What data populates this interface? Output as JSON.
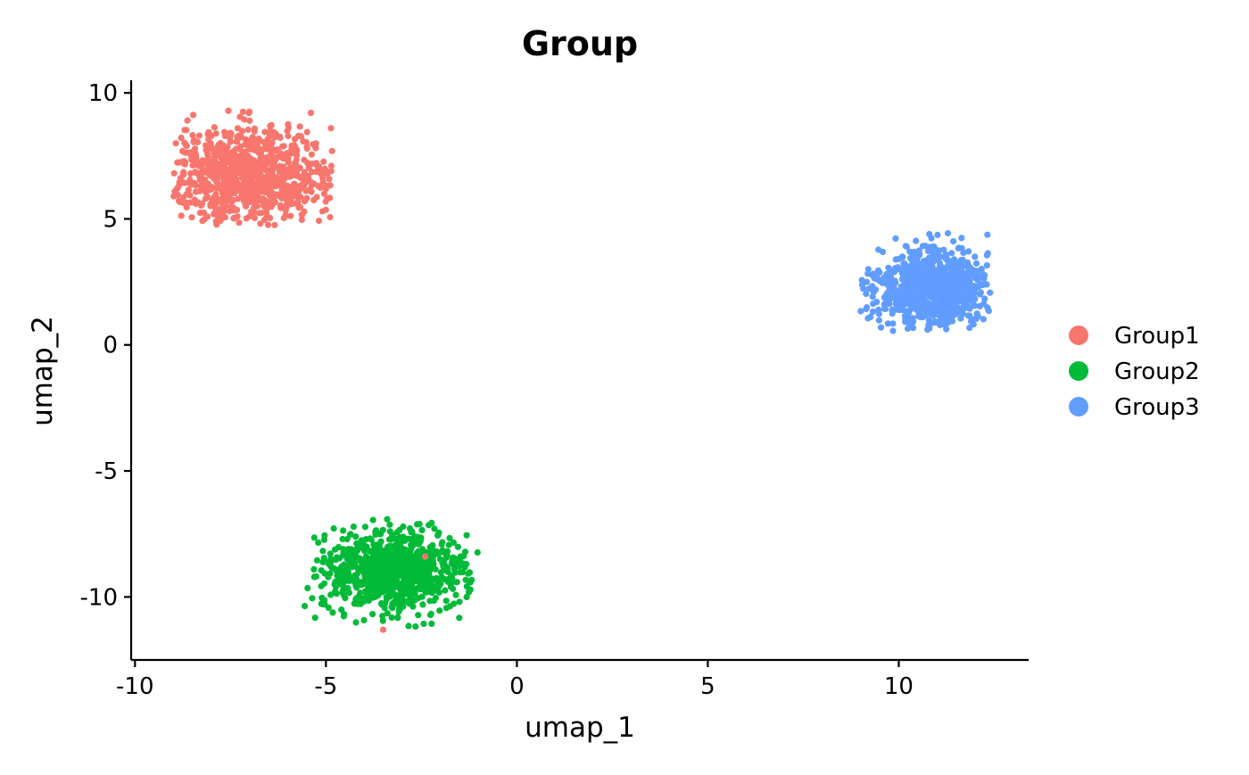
{
  "chart_data": {
    "type": "scatter",
    "title": "Group",
    "xlabel": "umap_1",
    "ylabel": "umap_2",
    "xlim": [
      -10.1,
      13.4
    ],
    "ylim": [
      -12.5,
      10.5
    ],
    "x_ticks": [
      -10,
      -5,
      0,
      5,
      10
    ],
    "y_ticks": [
      -10,
      -5,
      0,
      5,
      10
    ],
    "x_tick_labels": [
      "-10",
      "-5",
      "0",
      "5",
      "10"
    ],
    "y_tick_labels": [
      "-10",
      "-5",
      "0",
      "5",
      "10"
    ],
    "grid": false,
    "legend_position": "right",
    "series": [
      {
        "name": "Group1",
        "color": "#F8766D",
        "center": [
          -7.0,
          6.8
        ],
        "spread": [
          1.15,
          0.95
        ],
        "x_range": [
          -9.0,
          -4.8
        ],
        "y_range": [
          4.7,
          9.3
        ],
        "approx_points": 900
      },
      {
        "name": "Group2",
        "color": "#00BA38",
        "center": [
          -3.2,
          -9.0
        ],
        "spread": [
          0.95,
          0.8
        ],
        "x_range": [
          -5.6,
          -1.0
        ],
        "y_range": [
          -11.4,
          -6.9
        ],
        "approx_points": 900
      },
      {
        "name": "Group3",
        "color": "#619CFF",
        "center": [
          10.9,
          2.3
        ],
        "spread": [
          0.75,
          0.75
        ],
        "x_range": [
          9.0,
          12.4
        ],
        "y_range": [
          0.5,
          4.9
        ],
        "approx_points": 900
      }
    ],
    "outliers": [
      {
        "series": "Group1",
        "x": -2.4,
        "y": -8.4
      },
      {
        "series": "Group1",
        "x": -3.5,
        "y": -11.3
      }
    ]
  }
}
